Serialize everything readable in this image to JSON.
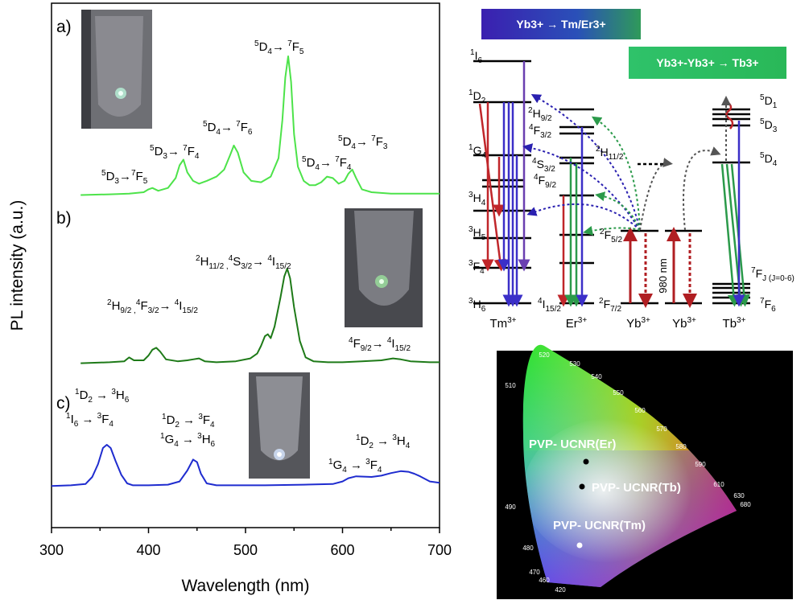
{
  "chart_data": [
    {
      "type": "line",
      "xlabel": "Wavelength (nm)",
      "ylabel": "PL intensity (a.u.)",
      "xlim": [
        300,
        700
      ],
      "x_ticks": [
        "300",
        "400",
        "500",
        "600",
        "700"
      ],
      "panels": [
        {
          "label": "a)",
          "color": "#4de34a",
          "x": [
            330,
            360,
            380,
            395,
            400,
            404,
            410,
            420,
            428,
            432,
            436,
            440,
            446,
            452,
            460,
            470,
            478,
            484,
            488,
            492,
            498,
            506,
            516,
            526,
            534,
            538,
            541,
            544,
            547,
            550,
            554,
            560,
            566,
            572,
            578,
            584,
            590,
            596,
            602,
            606,
            610,
            614,
            620,
            630,
            650,
            680,
            700
          ],
          "y": [
            0.02,
            0.025,
            0.03,
            0.04,
            0.06,
            0.07,
            0.05,
            0.07,
            0.14,
            0.23,
            0.27,
            0.18,
            0.12,
            0.1,
            0.12,
            0.15,
            0.2,
            0.3,
            0.37,
            0.32,
            0.18,
            0.12,
            0.11,
            0.15,
            0.28,
            0.55,
            0.85,
            1.0,
            0.82,
            0.45,
            0.22,
            0.12,
            0.09,
            0.09,
            0.11,
            0.15,
            0.14,
            0.1,
            0.12,
            0.17,
            0.2,
            0.14,
            0.06,
            0.04,
            0.03,
            0.03,
            0.03
          ],
          "annotations": [
            {
              "text": "5D3→7F5"
            },
            {
              "text": "5D3→7F4"
            },
            {
              "text": "5D4→7F6"
            },
            {
              "text": "5D4→7F5"
            },
            {
              "text": "5D4→7F4"
            },
            {
              "text": "5D4→7F3"
            }
          ]
        },
        {
          "label": "b)",
          "color": "#1e7a18",
          "x": [
            330,
            360,
            375,
            380,
            385,
            395,
            400,
            404,
            408,
            412,
            418,
            430,
            440,
            446,
            452,
            458,
            470,
            490,
            505,
            512,
            516,
            520,
            523,
            526,
            530,
            536,
            540,
            543,
            546,
            550,
            556,
            562,
            570,
            585,
            600,
            620,
            640,
            652,
            660,
            670,
            690,
            700
          ],
          "y": [
            0.02,
            0.03,
            0.04,
            0.08,
            0.05,
            0.05,
            0.1,
            0.16,
            0.18,
            0.14,
            0.06,
            0.04,
            0.05,
            0.06,
            0.07,
            0.04,
            0.03,
            0.04,
            0.07,
            0.12,
            0.2,
            0.3,
            0.32,
            0.28,
            0.4,
            0.7,
            0.92,
            1.0,
            0.9,
            0.6,
            0.25,
            0.08,
            0.04,
            0.03,
            0.03,
            0.04,
            0.05,
            0.07,
            0.06,
            0.04,
            0.03,
            0.03
          ],
          "annotations": [
            {
              "text": "2H9/2 ,4F3/2→ 4I15/2"
            },
            {
              "text": "2H11/2 ,4S3/2→ 4I15/2"
            },
            {
              "text": "4F9/2→ 4I15/2"
            }
          ]
        },
        {
          "label": "c)",
          "color": "#1f2ccf",
          "x": [
            300,
            320,
            335,
            342,
            348,
            353,
            357,
            361,
            366,
            372,
            378,
            384,
            390,
            400,
            420,
            432,
            440,
            446,
            450,
            454,
            460,
            470,
            490,
            520,
            560,
            590,
            600,
            606,
            614,
            630,
            640,
            650,
            660,
            668,
            674,
            680,
            690,
            700
          ],
          "y": [
            0.01,
            0.02,
            0.04,
            0.15,
            0.35,
            0.6,
            0.65,
            0.6,
            0.4,
            0.18,
            0.05,
            0.02,
            0.02,
            0.02,
            0.03,
            0.08,
            0.25,
            0.42,
            0.38,
            0.2,
            0.05,
            0.02,
            0.02,
            0.02,
            0.03,
            0.04,
            0.08,
            0.13,
            0.16,
            0.15,
            0.17,
            0.21,
            0.24,
            0.23,
            0.2,
            0.16,
            0.08,
            0.06
          ],
          "annotations": [
            {
              "text": "1D2 → 3H6"
            },
            {
              "text": "1I6 → 3F4"
            },
            {
              "text": "1D2 → 3F4"
            },
            {
              "text": "1G4 → 3H6"
            },
            {
              "text": "1D2 → 3H4"
            },
            {
              "text": "1G4 → 3F4"
            }
          ]
        }
      ]
    },
    {
      "type": "diagram",
      "banners": [
        "Yb3+ → Tm/Er3+",
        "Yb3+-Yb3+ → Tb3+"
      ],
      "ions": [
        "Tm3+",
        "Er3+",
        "Yb3+",
        "Yb3+",
        "Tb3+"
      ],
      "tm_levels": [
        "1I6",
        "1D2",
        "1G4",
        "3H4",
        "3H5",
        "3F4",
        "3H6"
      ],
      "er_levels": [
        "2H9/2",
        "4F3/2",
        "2H11/2",
        "4S3/2",
        "4F9/2",
        "4I15/2"
      ],
      "yb_levels": [
        "2F5/2",
        "2F7/2"
      ],
      "tb_levels": [
        "5D1",
        "5D3",
        "5D4",
        "7FJ (J=0-6)",
        "7F6"
      ],
      "excitation": "980 nm"
    },
    {
      "type": "scatter",
      "name": "CIE chromaticity diagram",
      "wavelength_ticks": [
        "520",
        "530",
        "540",
        "550",
        "560",
        "570",
        "580",
        "590",
        "610",
        "630",
        "680",
        "510",
        "490",
        "480",
        "470",
        "460",
        "420"
      ],
      "points": [
        {
          "label": "PVP- UCNR(Er)",
          "color": "#000000"
        },
        {
          "label": "PVP- UCNR(Tb)",
          "color": "#000000"
        },
        {
          "label": "PVP- UCNR(Tm)",
          "color": "#ffffff"
        }
      ]
    }
  ]
}
